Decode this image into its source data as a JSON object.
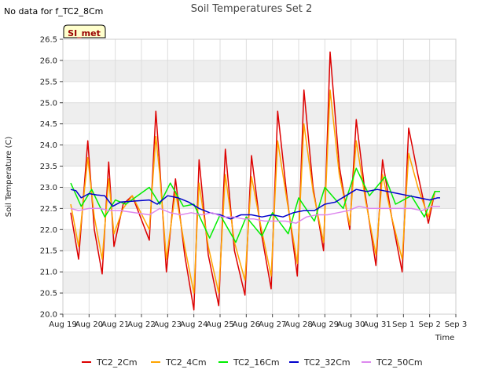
{
  "header": {
    "title": "Soil Temperatures Set 2",
    "no_data_note": "No data for f_TC2_8Cm",
    "site_label": "SI_met"
  },
  "colors": {
    "TC2_2Cm": "#dd0000",
    "TC2_4Cm": "#ffa500",
    "TC2_16Cm": "#00ee00",
    "TC2_32Cm": "#0000cc",
    "TC2_50Cm": "#dd88ee"
  },
  "chart_data": {
    "type": "line",
    "title": "Soil Temperatures Set 2",
    "xlabel": "Time",
    "ylabel": "Soil Temperature (C)",
    "ylim": [
      20.0,
      26.5
    ],
    "xlim": [
      0,
      15
    ],
    "x_unit": "days from Aug 19",
    "x_ticks": [
      "Aug 19",
      "Aug 20",
      "Aug 21",
      "Aug 22",
      "Aug 23",
      "Aug 24",
      "Aug 25",
      "Aug 26",
      "Aug 27",
      "Aug 28",
      "Aug 29",
      "Aug 30",
      "Aug 31",
      "Sep 1",
      "Sep 2",
      "Sep 3"
    ],
    "y_ticks": [
      "20.0",
      "20.5",
      "21.0",
      "21.5",
      "22.0",
      "22.5",
      "23.0",
      "23.5",
      "24.0",
      "24.5",
      "25.0",
      "25.5",
      "26.0",
      "26.5"
    ],
    "grid": true,
    "legend_position": "bottom",
    "series": [
      {
        "name": "TC2_2Cm",
        "x": [
          0.3,
          0.6,
          0.95,
          1.2,
          1.5,
          1.75,
          1.95,
          2.3,
          2.65,
          3.3,
          3.55,
          3.7,
          3.95,
          4.3,
          4.65,
          5.0,
          5.2,
          5.55,
          5.95,
          6.2,
          6.55,
          6.95,
          7.2,
          7.55,
          7.95,
          8.2,
          8.55,
          8.95,
          9.2,
          9.55,
          9.95,
          10.2,
          10.55,
          10.95,
          11.2,
          11.55,
          11.95,
          12.2,
          12.55,
          12.95,
          13.2,
          13.55,
          13.95,
          14.2,
          14.4
        ],
        "y": [
          22.4,
          21.3,
          24.1,
          22.0,
          20.95,
          23.6,
          21.6,
          22.6,
          22.8,
          21.75,
          24.8,
          23.5,
          21.0,
          23.2,
          21.4,
          20.1,
          23.65,
          21.4,
          20.2,
          23.9,
          21.5,
          20.45,
          23.75,
          22.0,
          20.6,
          24.8,
          22.8,
          20.9,
          25.3,
          23.0,
          21.5,
          26.2,
          23.5,
          22.0,
          24.6,
          22.8,
          21.15,
          23.65,
          22.3,
          21.0,
          24.4,
          23.3,
          22.15,
          22.9,
          22.9
        ]
      },
      {
        "name": "TC2_4Cm",
        "x": [
          0.3,
          0.6,
          0.95,
          1.2,
          1.5,
          1.75,
          1.95,
          2.3,
          2.65,
          3.3,
          3.55,
          3.7,
          3.95,
          4.3,
          4.65,
          5.0,
          5.2,
          5.55,
          5.95,
          6.2,
          6.55,
          6.95,
          7.2,
          7.55,
          7.95,
          8.2,
          8.55,
          8.95,
          9.2,
          9.55,
          9.95,
          10.2,
          10.55,
          10.95,
          11.2,
          11.55,
          11.95,
          12.2,
          12.55,
          12.95,
          13.2,
          13.55,
          13.95,
          14.2,
          14.4
        ],
        "y": [
          22.6,
          21.6,
          23.7,
          22.3,
          21.3,
          23.2,
          21.9,
          22.5,
          22.8,
          22.0,
          24.2,
          23.3,
          21.3,
          22.9,
          21.6,
          20.5,
          23.1,
          21.6,
          20.5,
          23.3,
          21.7,
          20.8,
          23.25,
          22.1,
          20.9,
          24.1,
          22.7,
          21.2,
          24.5,
          22.9,
          21.7,
          25.3,
          23.3,
          22.1,
          24.1,
          22.7,
          21.4,
          23.3,
          22.3,
          21.3,
          23.8,
          23.0,
          22.3,
          22.9,
          22.9
        ]
      },
      {
        "name": "TC2_16Cm",
        "x": [
          0.3,
          0.7,
          1.1,
          1.6,
          2.0,
          2.4,
          3.3,
          3.7,
          4.1,
          4.6,
          5.0,
          5.6,
          6.0,
          6.6,
          7.0,
          7.6,
          8.0,
          8.6,
          9.0,
          9.6,
          10.0,
          10.7,
          11.2,
          11.7,
          12.3,
          12.7,
          13.3,
          13.8,
          14.2,
          14.4
        ],
        "y": [
          23.1,
          22.55,
          22.95,
          22.3,
          22.7,
          22.6,
          23.0,
          22.6,
          23.1,
          22.55,
          22.6,
          21.8,
          22.35,
          21.7,
          22.3,
          21.85,
          22.4,
          21.9,
          22.75,
          22.2,
          23.0,
          22.5,
          23.45,
          22.8,
          23.25,
          22.6,
          22.8,
          22.3,
          22.9,
          22.9
        ]
      },
      {
        "name": "TC2_32Cm",
        "x": [
          0.3,
          0.5,
          0.7,
          1.0,
          1.3,
          1.6,
          1.9,
          2.2,
          3.3,
          3.6,
          4.0,
          4.4,
          4.8,
          5.2,
          5.6,
          6.0,
          6.4,
          6.8,
          7.2,
          7.6,
          8.0,
          8.4,
          8.8,
          9.2,
          9.6,
          10.0,
          10.4,
          10.8,
          11.2,
          11.6,
          12.0,
          12.4,
          12.8,
          13.2,
          13.6,
          14.0,
          14.3,
          14.4
        ],
        "y": [
          22.95,
          22.92,
          22.75,
          22.85,
          22.82,
          22.8,
          22.55,
          22.65,
          22.7,
          22.6,
          22.8,
          22.75,
          22.65,
          22.5,
          22.4,
          22.35,
          22.25,
          22.35,
          22.35,
          22.3,
          22.35,
          22.3,
          22.4,
          22.45,
          22.45,
          22.6,
          22.65,
          22.8,
          22.95,
          22.9,
          22.95,
          22.9,
          22.85,
          22.8,
          22.75,
          22.7,
          22.75,
          22.75
        ]
      },
      {
        "name": "TC2_50Cm",
        "x": [
          0.3,
          0.6,
          1.0,
          1.4,
          1.8,
          2.2,
          3.3,
          3.7,
          4.1,
          4.5,
          4.9,
          5.3,
          5.7,
          6.1,
          6.5,
          6.9,
          7.3,
          7.7,
          8.1,
          8.5,
          8.9,
          9.3,
          9.7,
          10.1,
          10.5,
          10.9,
          11.3,
          11.7,
          12.1,
          12.5,
          12.9,
          13.3,
          13.7,
          14.1,
          14.4
        ],
        "y": [
          22.5,
          22.45,
          22.5,
          22.5,
          22.45,
          22.45,
          22.35,
          22.5,
          22.4,
          22.35,
          22.4,
          22.35,
          22.4,
          22.3,
          22.3,
          22.25,
          22.25,
          22.2,
          22.2,
          22.2,
          22.15,
          22.3,
          22.35,
          22.35,
          22.4,
          22.45,
          22.55,
          22.5,
          22.5,
          22.5,
          22.5,
          22.5,
          22.45,
          22.55,
          22.55
        ]
      }
    ]
  }
}
